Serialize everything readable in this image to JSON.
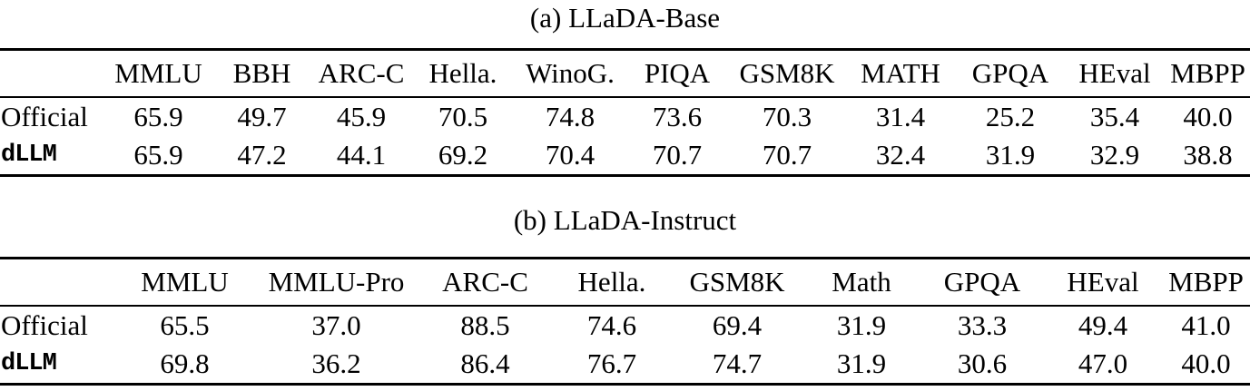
{
  "colors": {
    "text": "#000000",
    "background": "#ffffff",
    "rule": "#000000"
  },
  "tables": [
    {
      "caption": "(a) LLaDA-Base",
      "columns": [
        "MMLU",
        "BBH",
        "ARC-C",
        "Hella.",
        "WinoG.",
        "PIQA",
        "GSM8K",
        "MATH",
        "GPQA",
        "HEval",
        "MBPP"
      ],
      "rows": [
        {
          "label": "Official",
          "mono": false,
          "values": [
            "65.9",
            "49.7",
            "45.9",
            "70.5",
            "74.8",
            "73.6",
            "70.3",
            "31.4",
            "25.2",
            "35.4",
            "40.0"
          ]
        },
        {
          "label": "dLLM",
          "mono": true,
          "values": [
            "65.9",
            "47.2",
            "44.1",
            "69.2",
            "70.4",
            "70.7",
            "70.7",
            "32.4",
            "31.9",
            "32.9",
            "38.8"
          ]
        }
      ]
    },
    {
      "caption": "(b) LLaDA-Instruct",
      "columns": [
        "MMLU",
        "MMLU-Pro",
        "ARC-C",
        "Hella.",
        "GSM8K",
        "Math",
        "GPQA",
        "HEval",
        "MBPP"
      ],
      "rows": [
        {
          "label": "Official",
          "mono": false,
          "values": [
            "65.5",
            "37.0",
            "88.5",
            "74.6",
            "69.4",
            "31.9",
            "33.3",
            "49.4",
            "41.0"
          ]
        },
        {
          "label": "dLLM",
          "mono": true,
          "values": [
            "69.8",
            "36.2",
            "86.4",
            "76.7",
            "74.7",
            "31.9",
            "30.6",
            "47.0",
            "40.0"
          ]
        }
      ]
    }
  ]
}
